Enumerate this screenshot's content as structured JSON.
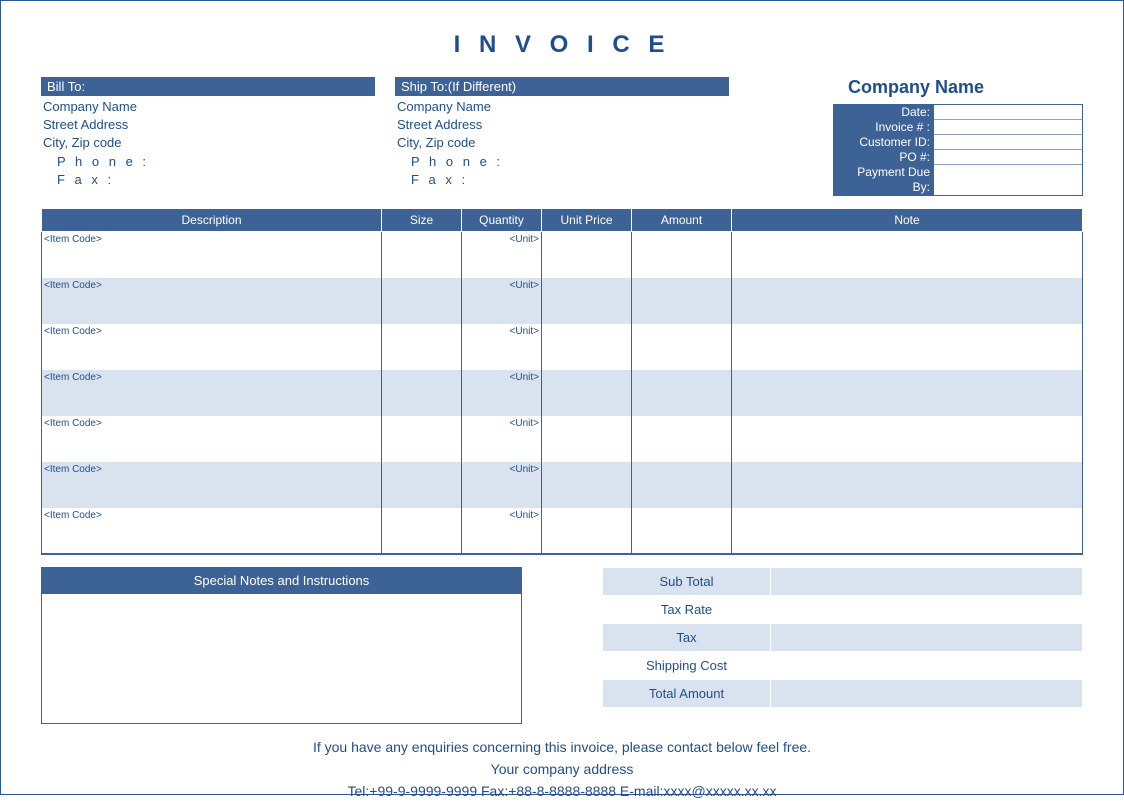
{
  "colors": {
    "primary": "#3d6296",
    "primary_dark": "#1f4e8c",
    "band_light": "#d9e3ef",
    "border": "#2b5797",
    "white": "#ffffff"
  },
  "title": "I N V O I C E",
  "bill_to": {
    "header": "Bill To:",
    "company": "Company Name",
    "street": "Street Address",
    "city": "City, Zip code",
    "phone_label": "P h o n e :",
    "fax_label": "F a x :"
  },
  "ship_to": {
    "header": "Ship To:(If Different)",
    "company": "Company Name",
    "street": "Street Address",
    "city": "City, Zip code",
    "phone_label": "P h o n e :",
    "fax_label": "F a x :"
  },
  "company_header": "Company Name",
  "meta": {
    "labels": [
      "Date:",
      "Invoice # :",
      "Customer ID:",
      "PO #:",
      "Payment Due By:"
    ],
    "values": [
      "",
      "",
      "",
      "",
      ""
    ]
  },
  "columns": [
    "Description",
    "Size",
    "Quantity",
    "Unit Price",
    "Amount",
    "Note"
  ],
  "column_widths": [
    "340px",
    "80px",
    "80px",
    "90px",
    "100px",
    "auto"
  ],
  "rows": [
    {
      "code": "<Item Code>",
      "unit": "<Unit>"
    },
    {
      "code": "<Item Code>",
      "unit": "<Unit>"
    },
    {
      "code": "<Item Code>",
      "unit": "<Unit>"
    },
    {
      "code": "<Item Code>",
      "unit": "<Unit>"
    },
    {
      "code": "<Item Code>",
      "unit": "<Unit>"
    },
    {
      "code": "<Item Code>",
      "unit": "<Unit>"
    },
    {
      "code": "<Item Code>",
      "unit": "<Unit>"
    }
  ],
  "notes_header": "Special Notes and Instructions",
  "totals": {
    "labels": [
      "Sub Total",
      "Tax Rate",
      "Tax",
      "Shipping Cost",
      "Total Amount"
    ],
    "values": [
      "",
      "",
      "",
      "",
      ""
    ]
  },
  "footer": {
    "line1": "If you have any enquiries concerning this invoice, please contact below feel free.",
    "line2": "Your company address",
    "line3": "Tel:+99-9-9999-9999 Fax:+88-8-8888-8888 E-mail:xxxx@xxxxx.xx.xx"
  }
}
